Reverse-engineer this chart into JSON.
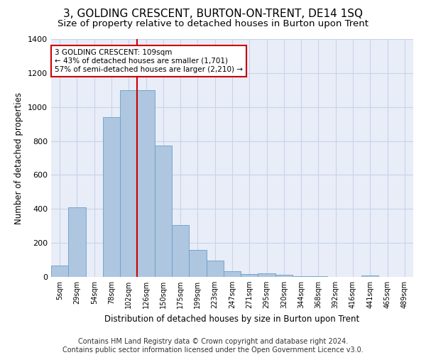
{
  "title": "3, GOLDING CRESCENT, BURTON-ON-TRENT, DE14 1SQ",
  "subtitle": "Size of property relative to detached houses in Burton upon Trent",
  "xlabel": "Distribution of detached houses by size in Burton upon Trent",
  "ylabel": "Number of detached properties",
  "footer_line1": "Contains HM Land Registry data © Crown copyright and database right 2024.",
  "footer_line2": "Contains public sector information licensed under the Open Government Licence v3.0.",
  "bar_labels": [
    "5sqm",
    "29sqm",
    "54sqm",
    "78sqm",
    "102sqm",
    "126sqm",
    "150sqm",
    "175sqm",
    "199sqm",
    "223sqm",
    "247sqm",
    "271sqm",
    "295sqm",
    "320sqm",
    "344sqm",
    "368sqm",
    "392sqm",
    "416sqm",
    "441sqm",
    "465sqm",
    "489sqm"
  ],
  "bar_values": [
    65,
    410,
    0,
    940,
    1100,
    1100,
    775,
    305,
    160,
    95,
    35,
    15,
    20,
    12,
    5,
    3,
    2,
    1,
    10,
    2,
    1
  ],
  "bar_color": "#aec6e0",
  "bar_edge_color": "#6a9fc8",
  "vline_color": "#cc0000",
  "vline_x_index": 4,
  "annotation_title": "3 GOLDING CRESCENT: 109sqm",
  "annotation_line1": "← 43% of detached houses are smaller (1,701)",
  "annotation_line2": "57% of semi-detached houses are larger (2,210) →",
  "annotation_box_color": "#cc0000",
  "ylim": [
    0,
    1400
  ],
  "yticks": [
    0,
    200,
    400,
    600,
    800,
    1000,
    1200,
    1400
  ],
  "grid_color": "#c8d4e8",
  "bg_color": "#e8edf8",
  "title_fontsize": 11,
  "subtitle_fontsize": 9.5,
  "footer_fontsize": 7
}
